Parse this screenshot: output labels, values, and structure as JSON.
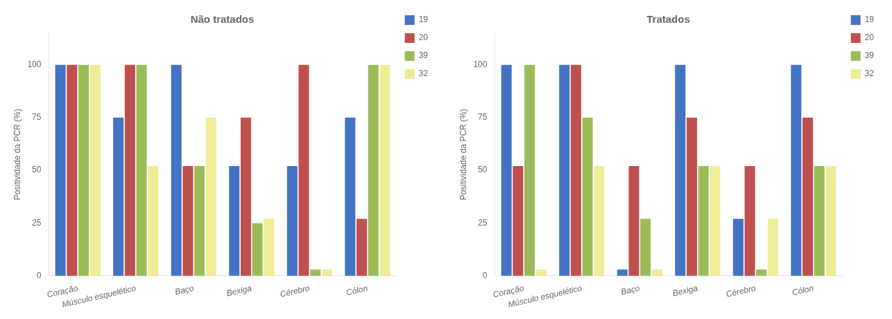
{
  "chart_data": [
    {
      "type": "bar",
      "title": "Não tratados",
      "ylabel": "Positividade da PCR (%)",
      "categories": [
        "Coração",
        "Músculo esquelético",
        "Baço",
        "Bexiga",
        "Cérebro",
        "Cólon"
      ],
      "series": [
        {
          "name": "19",
          "color": "#4472C4",
          "values": [
            100,
            75,
            100,
            52,
            52,
            75
          ]
        },
        {
          "name": "20",
          "color": "#C0504D",
          "values": [
            100,
            100,
            52,
            75,
            100,
            27
          ]
        },
        {
          "name": "39",
          "color": "#9BBB59",
          "values": [
            100,
            100,
            52,
            25,
            3,
            100
          ]
        },
        {
          "name": "32",
          "color": "#EEEC96",
          "values": [
            100,
            52,
            75,
            27,
            3,
            100
          ]
        }
      ],
      "ylim": [
        0,
        115
      ],
      "yticks": [
        0,
        25,
        50,
        75,
        100
      ],
      "grid": false,
      "legend": "right"
    },
    {
      "type": "bar",
      "title": "Tratados",
      "ylabel": "Positividade da PCR (%)",
      "categories": [
        "Coração",
        "Músculo esquelético",
        "Baço",
        "Bexiga",
        "Cérebro",
        "Cólon"
      ],
      "series": [
        {
          "name": "19",
          "color": "#4472C4",
          "values": [
            100,
            100,
            3,
            100,
            27,
            100
          ]
        },
        {
          "name": "20",
          "color": "#C0504D",
          "values": [
            52,
            100,
            52,
            75,
            52,
            75
          ]
        },
        {
          "name": "39",
          "color": "#9BBB59",
          "values": [
            100,
            75,
            27,
            52,
            3,
            52
          ]
        },
        {
          "name": "32",
          "color": "#EEEC96",
          "values": [
            3,
            52,
            3,
            52,
            27,
            52
          ]
        }
      ],
      "ylim": [
        0,
        115
      ],
      "yticks": [
        0,
        25,
        50,
        75,
        100
      ],
      "grid": false,
      "legend": "right"
    }
  ]
}
